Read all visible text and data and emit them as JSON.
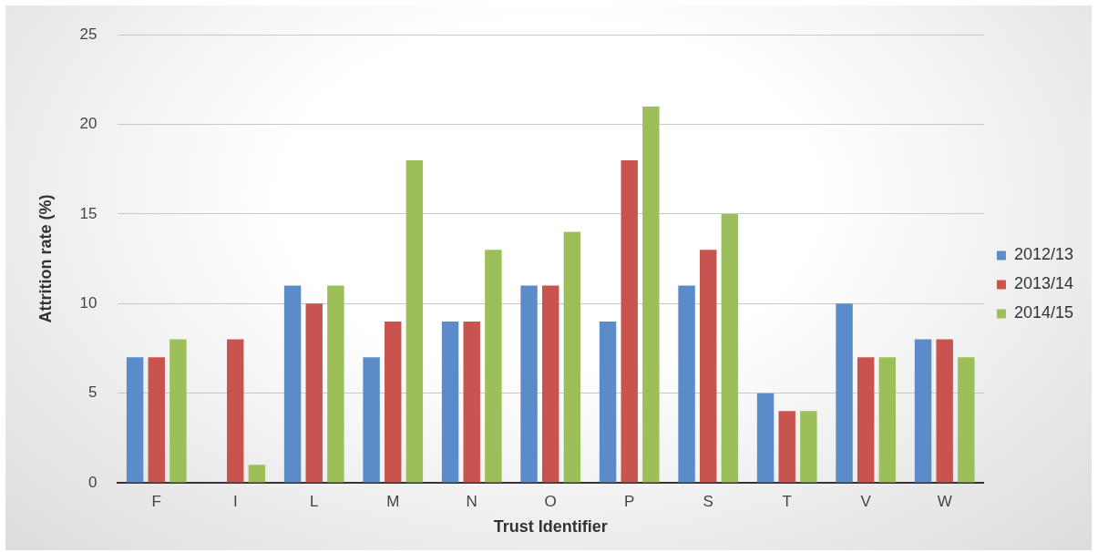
{
  "chart_data": {
    "type": "bar",
    "xlabel": "Trust Identifier",
    "ylabel": "Attrition rate (%)",
    "categories": [
      "F",
      "I",
      "L",
      "M",
      "N",
      "O",
      "P",
      "S",
      "T",
      "V",
      "W"
    ],
    "series": [
      {
        "name": "2012/13",
        "color": "#5b8bc8",
        "values": [
          7,
          null,
          11,
          7,
          9,
          11,
          9,
          11,
          5,
          10,
          8
        ]
      },
      {
        "name": "2013/14",
        "color": "#c9544f",
        "values": [
          7,
          8,
          10,
          9,
          9,
          11,
          18,
          13,
          4,
          7,
          8
        ]
      },
      {
        "name": "2014/15",
        "color": "#9cbf5a",
        "values": [
          8,
          1,
          11,
          18,
          13,
          14,
          21,
          15,
          4,
          7,
          7
        ]
      }
    ],
    "ylim": [
      0,
      25
    ],
    "yticks": [
      0,
      5,
      10,
      15,
      20,
      25
    ],
    "grid": "y",
    "legend": "right"
  }
}
